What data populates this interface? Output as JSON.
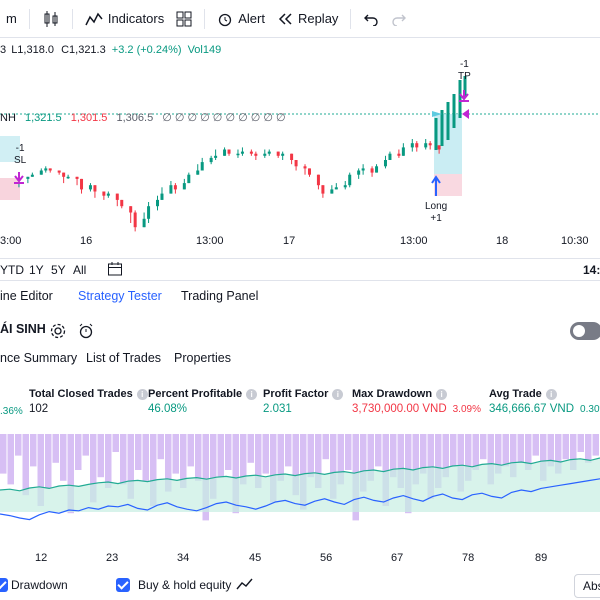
{
  "toolbar": {
    "interval": "m",
    "indicators_label": "Indicators",
    "alert_label": "Alert",
    "replay_label": "Replay"
  },
  "ohlc": {
    "prefix": "3",
    "low": "L1,318.0",
    "close": "C1,321.3",
    "change": "+3.2 (+0.24%)",
    "volume": "Vol149"
  },
  "indicator": {
    "name": "NH",
    "v1": "1,321.5",
    "v2": "1,301.5",
    "v3": "1,306.5",
    "zeros": "∅ ∅ ∅ ∅ ∅ ∅ ∅ ∅ ∅ ∅"
  },
  "annotations": {
    "sl_qty": "-1",
    "sl_label": "SL",
    "tp_qty": "-1",
    "tp_label": "TP",
    "long_label": "Long",
    "long_qty": "+1"
  },
  "time_axis": [
    "3:00",
    "16",
    "13:00",
    "17",
    "13:00",
    "18",
    "10:30",
    "14:"
  ],
  "range_buttons": [
    "YTD",
    "1Y",
    "5Y",
    "All"
  ],
  "panel_tabs": [
    "ine Editor",
    "Strategy Tester",
    "Trading Panel"
  ],
  "strategy_name": "ÁI SINH",
  "sub_tabs": [
    "nce Summary",
    "List of Trades",
    "Properties"
  ],
  "metrics": {
    "first_partial": ".36%",
    "total_closed_trades_label": "Total Closed Trades",
    "total_closed_trades": "102",
    "percent_profitable_label": "Percent Profitable",
    "percent_profitable": "46.08%",
    "profit_factor_label": "Profit Factor",
    "profit_factor": "2.031",
    "max_drawdown_label": "Max Drawdown",
    "max_drawdown": "3,730,000.00 VND",
    "max_drawdown_pct": "3.09%",
    "avg_trade_label": "Avg Trade",
    "avg_trade": "346,666.67 VND",
    "avg_trade_pct": "0.30%"
  },
  "equity_axis": [
    "12",
    "23",
    "34",
    "45",
    "56",
    "67",
    "78",
    "89"
  ],
  "legend": {
    "drawdown_label": "Drawdown",
    "buyhold_label": "Buy & hold equity",
    "abs_label": "Abs"
  },
  "colors": {
    "up": "#089981",
    "down": "#f23645",
    "accent": "#2962ff",
    "drawdown_bar": "#c9a9f0"
  },
  "candles": [
    [
      2,
      1,
      -3,
      3
    ],
    [
      4,
      2,
      -1,
      2
    ],
    [
      5,
      3,
      3,
      4
    ],
    [
      7,
      5,
      3,
      6
    ],
    [
      8,
      6,
      4,
      7
    ],
    [
      9,
      5,
      4,
      6
    ],
    [
      11,
      4,
      3,
      5
    ],
    [
      12,
      2,
      -1,
      3
    ],
    [
      13,
      2,
      1,
      3
    ],
    [
      15,
      1,
      -2,
      2
    ],
    [
      16,
      -4,
      -6,
      -2
    ],
    [
      18,
      -2,
      -5,
      -1
    ],
    [
      19,
      -5,
      -8,
      -3
    ],
    [
      21,
      -7,
      -9,
      -5
    ],
    [
      22,
      -6,
      -8,
      -5
    ],
    [
      24,
      -9,
      -12,
      -7
    ],
    [
      25,
      -12,
      -13,
      -10
    ],
    [
      27,
      -15,
      -20,
      -12
    ],
    [
      28,
      -22,
      -24,
      -14
    ],
    [
      30,
      -18,
      -22,
      -15
    ],
    [
      31,
      -12,
      -20,
      -10
    ],
    [
      33,
      -9,
      -14,
      -7
    ],
    [
      34,
      -6,
      -8,
      -3
    ],
    [
      36,
      -2,
      -6,
      0
    ],
    [
      37,
      -4,
      -6,
      -1
    ],
    [
      39,
      -1,
      -3,
      1
    ],
    [
      40,
      3,
      -1,
      4
    ],
    [
      42,
      5,
      3,
      8
    ],
    [
      43,
      9,
      5,
      11
    ],
    [
      45,
      11,
      8,
      12
    ],
    [
      46,
      12,
      10,
      15
    ],
    [
      48,
      15,
      12,
      16
    ],
    [
      49,
      13,
      12,
      14
    ],
    [
      51,
      13,
      11,
      15
    ],
    [
      52,
      14,
      12,
      16
    ],
    [
      54,
      13,
      12,
      15
    ],
    [
      55,
      12,
      10,
      14
    ],
    [
      57,
      13,
      11,
      15
    ],
    [
      58,
      14,
      12,
      15
    ],
    [
      60,
      12,
      11,
      14
    ],
    [
      61,
      13,
      10,
      14
    ],
    [
      63,
      10,
      8,
      13
    ],
    [
      64,
      7,
      5,
      10
    ],
    [
      66,
      6,
      3,
      8
    ],
    [
      67,
      3,
      2,
      6
    ],
    [
      69,
      -2,
      -4,
      2
    ],
    [
      70,
      -6,
      -8,
      -3
    ],
    [
      72,
      -4,
      -5,
      -2
    ],
    [
      73,
      -3,
      -4,
      -1
    ],
    [
      75,
      -2,
      -4,
      0
    ],
    [
      76,
      3,
      -3,
      4
    ],
    [
      78,
      5,
      1,
      6
    ],
    [
      79,
      6,
      3,
      8
    ],
    [
      81,
      4,
      2,
      7
    ],
    [
      82,
      7,
      5,
      8
    ],
    [
      84,
      10,
      6,
      12
    ],
    [
      85,
      13,
      10,
      14
    ],
    [
      87,
      12,
      11,
      15
    ],
    [
      88,
      16,
      12,
      18
    ],
    [
      90,
      18,
      14,
      20
    ],
    [
      91,
      16,
      14,
      19
    ],
    [
      93,
      18,
      15,
      20
    ],
    [
      94,
      17,
      15,
      19
    ],
    [
      96,
      15,
      13,
      17
    ]
  ],
  "drawdown_bars": [
    22,
    28,
    12,
    34,
    18,
    40,
    30,
    16,
    26,
    44,
    20,
    12,
    38,
    24,
    30,
    10,
    28,
    36,
    20,
    26,
    40,
    14,
    32,
    22,
    30,
    18,
    26,
    48,
    36,
    24,
    20,
    44,
    28,
    16,
    30,
    22,
    38,
    26,
    18,
    34,
    42,
    24,
    30,
    14,
    36,
    28,
    20,
    48,
    32,
    26,
    18,
    40,
    24,
    30,
    44,
    28,
    22,
    36,
    30,
    24,
    18,
    32,
    26,
    20,
    14,
    28,
    22,
    18,
    24,
    16,
    20,
    12,
    26,
    18,
    22,
    14,
    20,
    10,
    16,
    12
  ],
  "equity_line": [
    60,
    62,
    58,
    65,
    68,
    64,
    70,
    72,
    69,
    74,
    78,
    80,
    76,
    82,
    84,
    81,
    86,
    88,
    84,
    89,
    91,
    87,
    92,
    94,
    90,
    95,
    97,
    93,
    98,
    100,
    96,
    101,
    103,
    99,
    104,
    106,
    102,
    108,
    110,
    106,
    112,
    114,
    110,
    116,
    118,
    114,
    120,
    122,
    118,
    124,
    126,
    122,
    128,
    130,
    126,
    132,
    134,
    130,
    136,
    138,
    134,
    140
  ],
  "buyhold_line": [
    40,
    36,
    30,
    26,
    38,
    46,
    42,
    50,
    48,
    56,
    52,
    60,
    58,
    64,
    54,
    50,
    62,
    68,
    58,
    52,
    48,
    56,
    66,
    70,
    62,
    58,
    52,
    60,
    70,
    74,
    66,
    62,
    72,
    78,
    70,
    64,
    76,
    82,
    74,
    70,
    80,
    86,
    78,
    72,
    84,
    90,
    80,
    76,
    88,
    92,
    84,
    80,
    94,
    100,
    96,
    104,
    108,
    112,
    116,
    120,
    124,
    128
  ]
}
